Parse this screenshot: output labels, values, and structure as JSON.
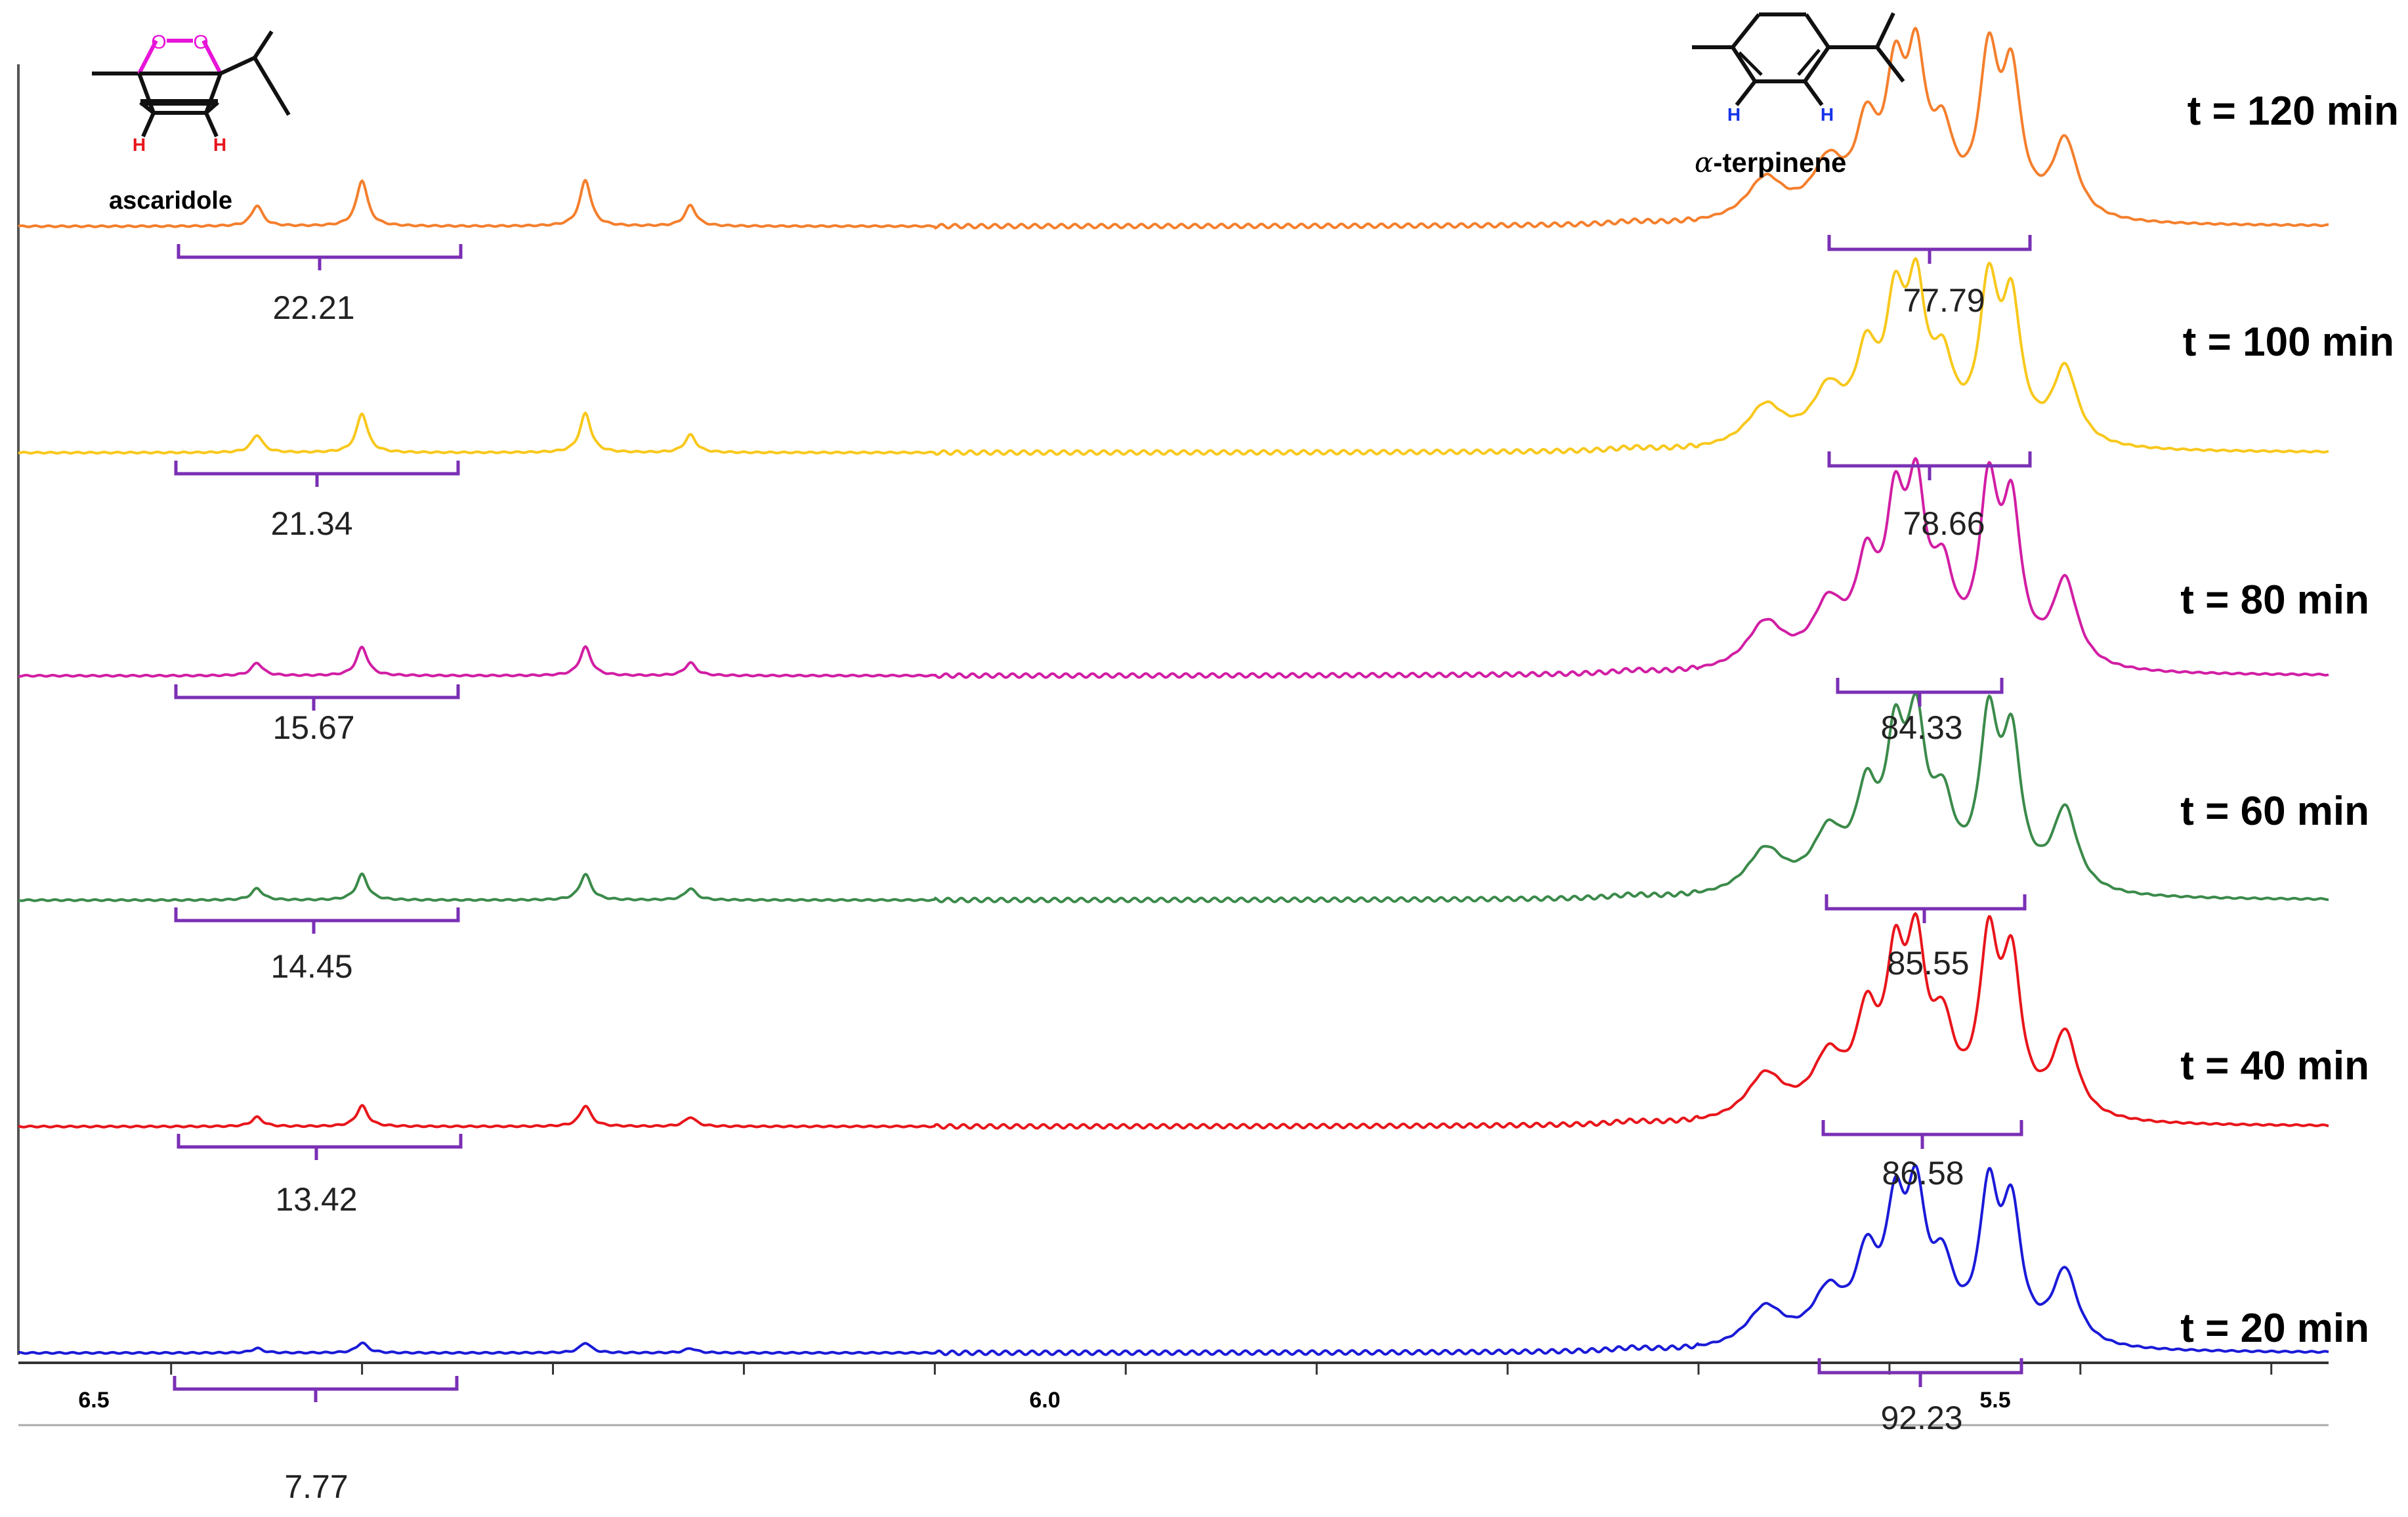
{
  "chart_data": {
    "type": "line",
    "title": "",
    "xlabel": "",
    "ylabel": "",
    "x_axis": {
      "reversed": true,
      "range": [
        6.58,
        5.37
      ],
      "ticks": [
        6.5,
        6.4,
        6.3,
        6.2,
        6.1,
        6.0,
        5.9,
        5.8,
        5.7,
        5.6,
        5.5,
        5.4
      ],
      "tick_labels": [
        "6.5",
        "6.0",
        "5.5"
      ]
    },
    "grid": false,
    "structures": {
      "left_name": "ascaridole",
      "right_name": "α-terpinene",
      "right_name_prefix": "α",
      "right_name_suffix": "-terpinene",
      "h_label": "H",
      "o_label": "O",
      "h_color_left": "#e8151b",
      "h_color_right": "#1533e8",
      "o_color": "#e814d8"
    },
    "series": [
      {
        "name": "t = 120 min",
        "time_min": 120,
        "color": "#f47f2d",
        "ascaridole_integral": "22.21",
        "terpinene_integral": "77.79",
        "asc_scale": 1.0,
        "terp_scale": 1.0
      },
      {
        "name": "t = 100 min",
        "time_min": 100,
        "color": "#f8c81c",
        "ascaridole_integral": "21.34",
        "terpinene_integral": "78.66",
        "asc_scale": 0.85,
        "terp_scale": 0.98
      },
      {
        "name": "t = 80 min",
        "time_min": 80,
        "color": "#d11ea4",
        "ascaridole_integral": "15.67",
        "terpinene_integral": "84.33",
        "asc_scale": 0.62,
        "terp_scale": 1.1
      },
      {
        "name": "t = 60 min",
        "time_min": 60,
        "color": "#3b8a4a",
        "ascaridole_integral": "14.45",
        "terpinene_integral": "85.55",
        "asc_scale": 0.56,
        "terp_scale": 1.05
      },
      {
        "name": "t = 40 min",
        "time_min": 40,
        "color": "#e8151b",
        "ascaridole_integral": "13.42",
        "terpinene_integral": "86.58",
        "asc_scale": 0.45,
        "terp_scale": 1.08
      },
      {
        "name": "t = 20 min",
        "time_min": 20,
        "color": "#1a1ad8",
        "ascaridole_integral": "7.77",
        "terpinene_integral": "92.23",
        "asc_scale": 0.22,
        "terp_scale": 0.95
      }
    ],
    "peaks": {
      "ascaridole": [
        {
          "ppm": 6.455,
          "rel": 0.45
        },
        {
          "ppm": 6.4,
          "rel": 1.0
        },
        {
          "ppm": 6.283,
          "rel": 1.0
        },
        {
          "ppm": 6.228,
          "rel": 0.45
        }
      ],
      "terpinene": [
        {
          "ppm": 5.665,
          "rel": 0.28,
          "w": 0.012
        },
        {
          "ppm": 5.632,
          "rel": 0.35,
          "w": 0.01
        },
        {
          "ppm": 5.612,
          "rel": 0.55,
          "w": 0.007
        },
        {
          "ppm": 5.597,
          "rel": 0.82,
          "w": 0.006
        },
        {
          "ppm": 5.586,
          "rel": 0.92,
          "w": 0.006
        },
        {
          "ppm": 5.572,
          "rel": 0.48,
          "w": 0.007
        },
        {
          "ppm": 5.548,
          "rel": 1.0,
          "w": 0.006
        },
        {
          "ppm": 5.536,
          "rel": 0.88,
          "w": 0.006
        },
        {
          "ppm": 5.508,
          "rel": 0.52,
          "w": 0.008
        }
      ],
      "minor": [
        {
          "ppm": 5.735,
          "rel": 0.1
        },
        {
          "ppm": 5.645,
          "rel": 0.06
        }
      ]
    }
  }
}
